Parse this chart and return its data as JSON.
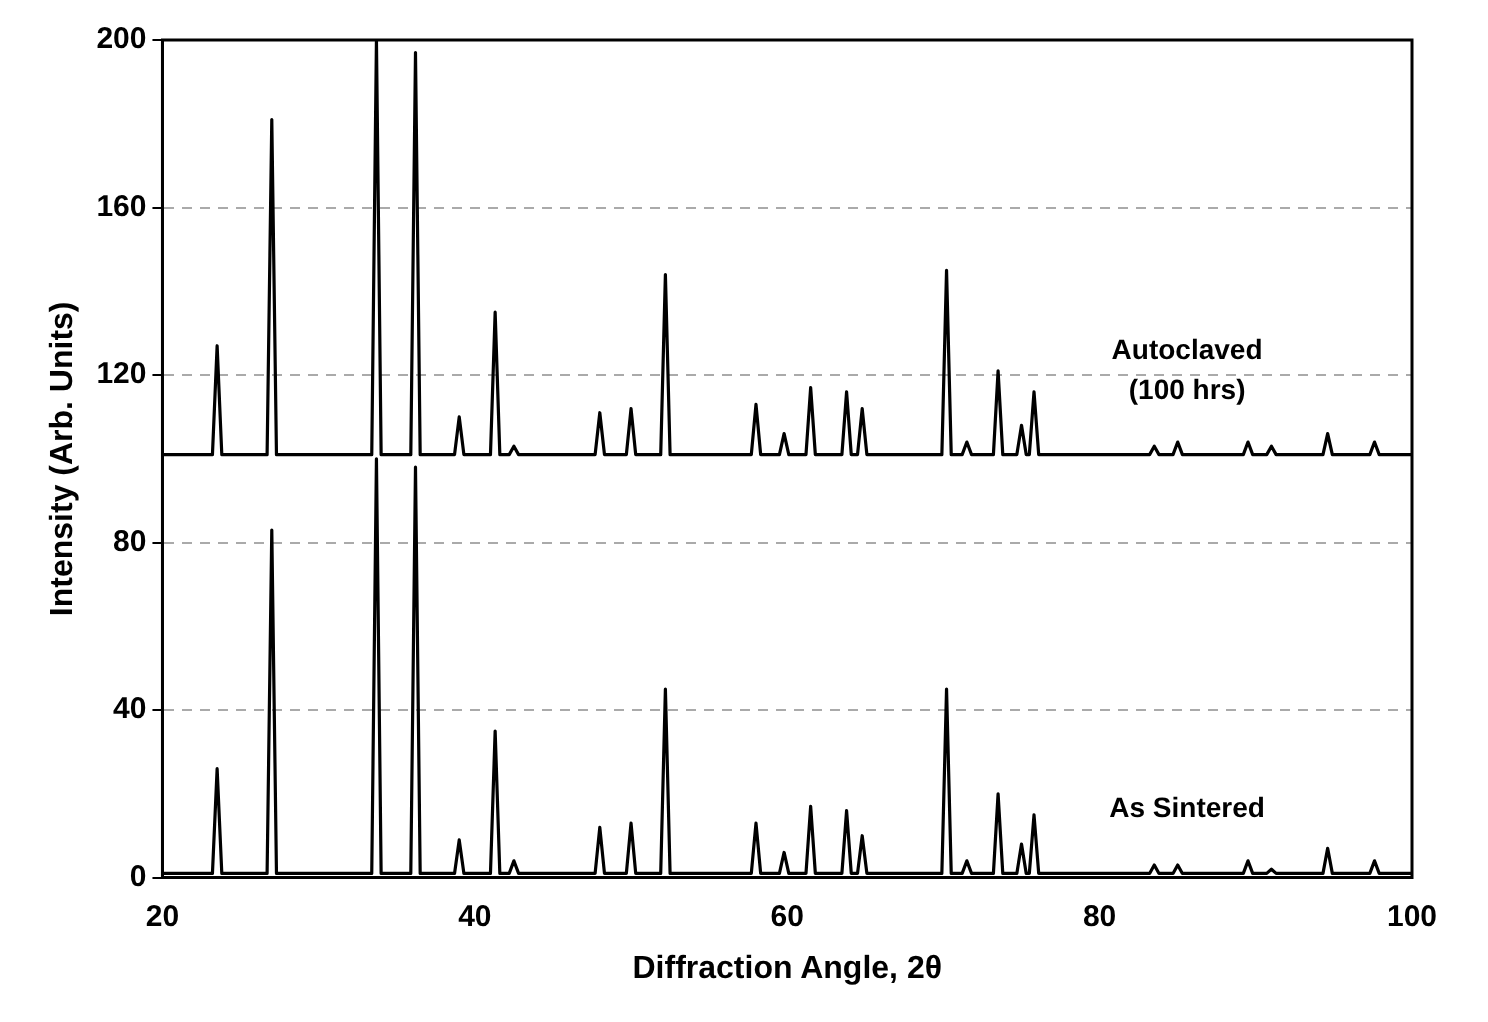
{
  "chart_data": {
    "type": "line",
    "xlabel": "Diffraction Angle, 2θ",
    "ylabel": "Intensity (Arb. Units)",
    "x": [
      20,
      23.2,
      23.5,
      23.8,
      26.7,
      27.0,
      27.3,
      33.4,
      33.7,
      34.0,
      35.9,
      36.2,
      36.5,
      38.7,
      39.0,
      39.3,
      41.0,
      41.3,
      41.6,
      42.2,
      42.5,
      42.8,
      47.7,
      48.0,
      48.3,
      49.7,
      50.0,
      50.3,
      51.9,
      52.2,
      52.5,
      57.7,
      58.0,
      58.3,
      59.5,
      59.8,
      60.1,
      61.2,
      61.5,
      61.8,
      63.5,
      63.8,
      64.1,
      64.5,
      64.8,
      65.1,
      69.9,
      70.2,
      70.5,
      71.2,
      71.5,
      71.8,
      73.2,
      73.5,
      73.8,
      74.7,
      75.0,
      75.3,
      75.5,
      75.8,
      76.1,
      83.2,
      83.5,
      83.8,
      84.7,
      85.0,
      85.3,
      89.2,
      89.5,
      89.8,
      90.7,
      91.0,
      91.3,
      94.3,
      94.6,
      94.9,
      97.3,
      97.6,
      97.9,
      100
    ],
    "series": [
      {
        "name": "Autoclaved (100 hrs)",
        "color": "#000000",
        "values": [
          101,
          101,
          127,
          101,
          101,
          181,
          101,
          101,
          200,
          101,
          101,
          197,
          101,
          101,
          110,
          101,
          101,
          135,
          101,
          101,
          103,
          101,
          101,
          111,
          101,
          101,
          112,
          101,
          101,
          144,
          101,
          101,
          113,
          101,
          101,
          106,
          101,
          101,
          117,
          101,
          101,
          116,
          101,
          101,
          112,
          101,
          101,
          145,
          101,
          101,
          104,
          101,
          101,
          121,
          101,
          101,
          108,
          101,
          101,
          116,
          101,
          101,
          103,
          101,
          101,
          104,
          101,
          101,
          104,
          101,
          101,
          103,
          101,
          101,
          106,
          101,
          101,
          104,
          101,
          101
        ]
      },
      {
        "name": "As Sintered",
        "color": "#000000",
        "values": [
          1,
          1,
          26,
          1,
          1,
          83,
          1,
          1,
          100,
          1,
          1,
          98,
          1,
          1,
          9,
          1,
          1,
          35,
          1,
          1,
          4,
          1,
          1,
          12,
          1,
          1,
          13,
          1,
          1,
          45,
          1,
          1,
          13,
          1,
          1,
          6,
          1,
          1,
          17,
          1,
          1,
          16,
          1,
          1,
          10,
          1,
          1,
          45,
          1,
          1,
          4,
          1,
          1,
          20,
          1,
          1,
          8,
          1,
          1,
          15,
          1,
          1,
          3,
          1,
          1,
          3,
          1,
          1,
          4,
          1,
          1,
          2,
          1,
          1,
          7,
          1,
          1,
          4,
          1,
          1
        ]
      }
    ],
    "xlim": [
      20,
      100
    ],
    "xticks": [
      20,
      40,
      60,
      80,
      100
    ],
    "ylim": [
      0,
      200
    ],
    "yticks": [
      0,
      40,
      80,
      120,
      160,
      200
    ],
    "grid": "y",
    "legend": false,
    "marker": "none",
    "line_style": "solid"
  }
}
